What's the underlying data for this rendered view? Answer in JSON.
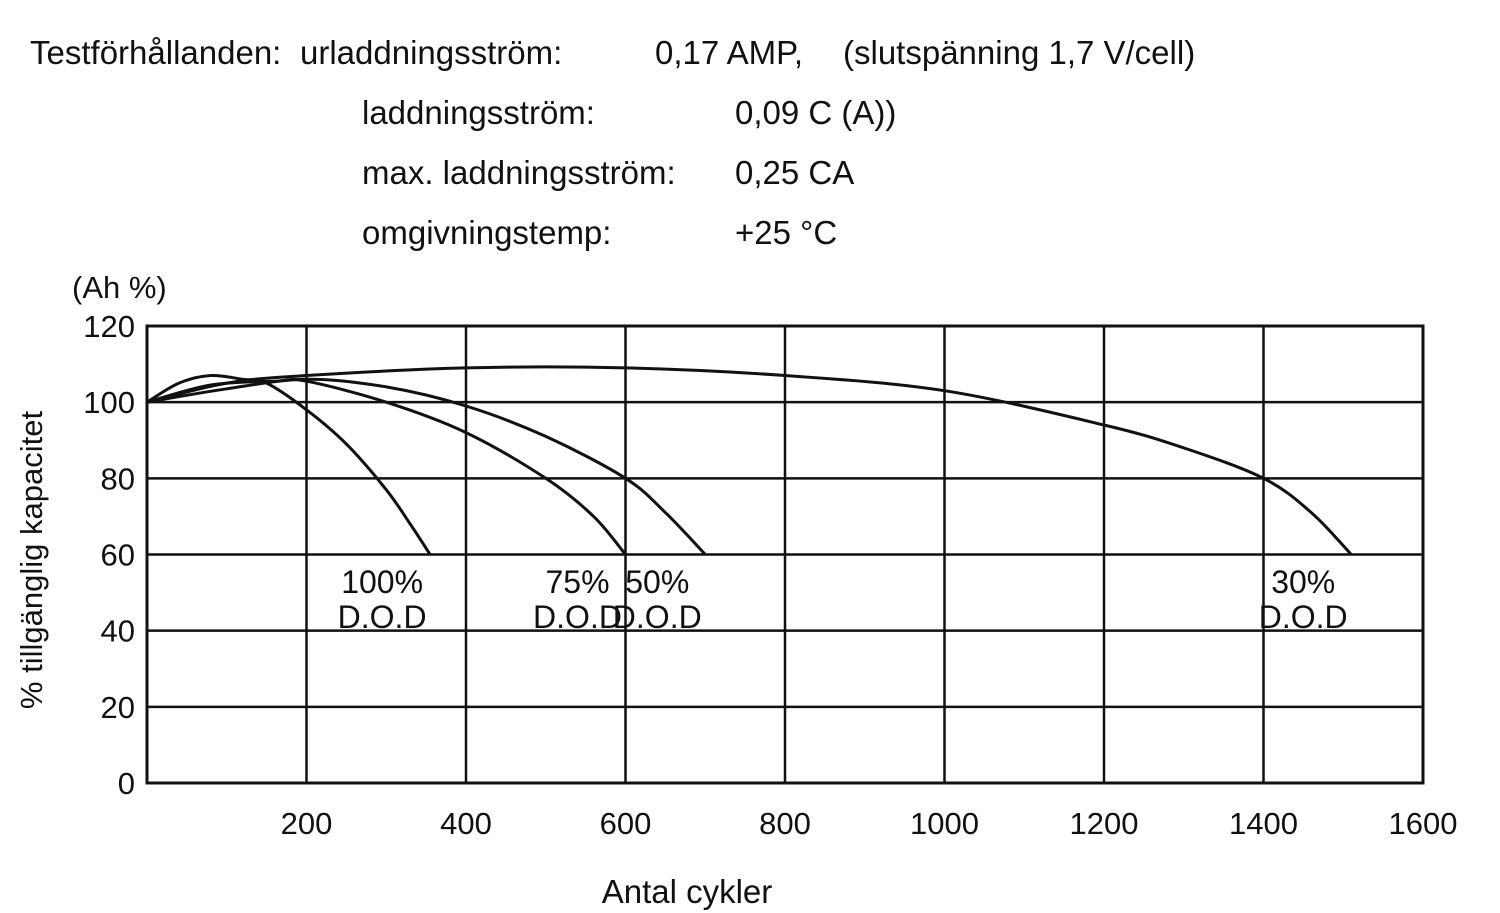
{
  "conditions": {
    "label": "Testförhållanden:",
    "rows": [
      {
        "name": "urladdningsström:",
        "value": "0,17 AMP,",
        "note": "(slutspänning 1,7 V/cell)"
      },
      {
        "name": "laddningsström:",
        "value": "0,09 C (A))"
      },
      {
        "name": "max. laddningsström:",
        "value": "0,25 CA"
      },
      {
        "name": "omgivningstemp:",
        "value": "+25 °C"
      }
    ]
  },
  "chart_data": {
    "type": "line",
    "title": "",
    "xlabel": "Antal cykler",
    "ylabel": "% tillgänglig kapacitet",
    "yunit": "(Ah %)",
    "xlim": [
      0,
      1600
    ],
    "ylim": [
      0,
      120
    ],
    "xticks": [
      "200",
      "400",
      "600",
      "800",
      "1000",
      "1200",
      "1400",
      "1600"
    ],
    "yticks": [
      "0",
      "20",
      "40",
      "60",
      "80",
      "100",
      "120"
    ],
    "grid": true,
    "series": [
      {
        "name": "100% D.O.D",
        "label_top": "100%",
        "label_bottom": "D.O.D",
        "x": [
          0,
          40,
          80,
          120,
          150,
          200,
          250,
          300,
          330,
          355
        ],
        "y": [
          100,
          105,
          107,
          106,
          105,
          98,
          89,
          77,
          68,
          60
        ]
      },
      {
        "name": "75% D.O.D",
        "label_top": "75%",
        "label_bottom": "D.O.D",
        "x": [
          0,
          80,
          160,
          200,
          300,
          400,
          500,
          560,
          600
        ],
        "y": [
          100,
          104.5,
          105.5,
          105.5,
          100,
          92,
          80,
          70,
          60
        ]
      },
      {
        "name": "50% D.O.D",
        "label_top": "50%",
        "label_bottom": "D.O.D",
        "x": [
          0,
          100,
          200,
          300,
          400,
          500,
          600,
          650,
          700
        ],
        "y": [
          100,
          103.5,
          106,
          104,
          99,
          91,
          80,
          71,
          60
        ]
      },
      {
        "name": "30% D.O.D",
        "label_top": "30%",
        "label_bottom": "D.O.D",
        "x": [
          0,
          100,
          200,
          400,
          600,
          800,
          1000,
          1200,
          1300,
          1400,
          1460,
          1510
        ],
        "y": [
          100,
          105,
          107,
          109,
          109,
          107,
          103,
          94,
          88,
          80,
          71,
          60
        ]
      }
    ]
  }
}
